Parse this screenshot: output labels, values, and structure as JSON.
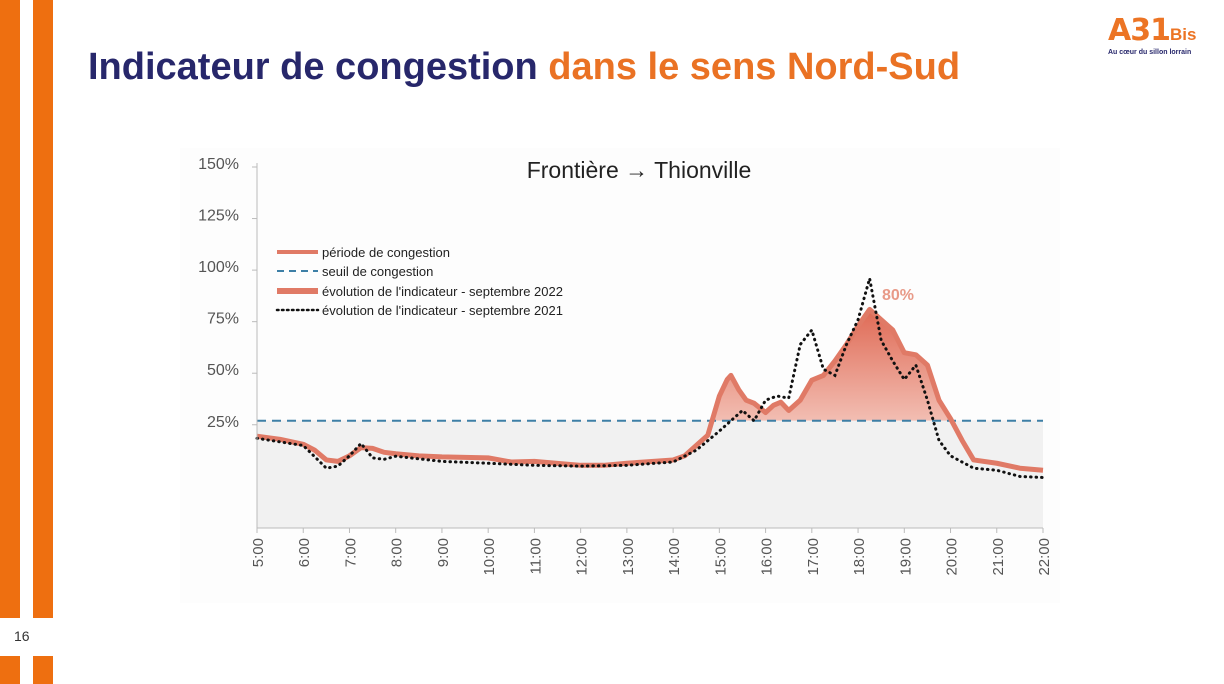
{
  "slide": {
    "title_part1": "Indicateur de congestion",
    "title_part2": "dans le sens Nord-Sud",
    "page_number": "16",
    "logo": {
      "main": "A31",
      "suffix": "Bis",
      "tagline": "Au cœur du sillon lorrain"
    },
    "colors": {
      "navy": "#27276b",
      "orange": "#ee6f10",
      "congestion": "#e07a66",
      "threshold": "#3d7fa6"
    }
  },
  "chart_data": {
    "type": "area",
    "title": "Frontière → Thionville",
    "xlabel": "",
    "ylabel": "",
    "x_ticks": [
      "5:00",
      "6:00",
      "7:00",
      "8:00",
      "9:00",
      "10:00",
      "11:00",
      "12:00",
      "13:00",
      "14:00",
      "15:00",
      "16:00",
      "17:00",
      "18:00",
      "19:00",
      "20:00",
      "21:00",
      "22:00"
    ],
    "y_ticks": [
      "25%",
      "50%",
      "75%",
      "100%",
      "125%",
      "150%"
    ],
    "y_tick_values": [
      25,
      50,
      75,
      100,
      125,
      150
    ],
    "xlim": [
      5,
      22
    ],
    "ylim": [
      -27,
      150
    ],
    "threshold": 25,
    "legend_placement": "top-left",
    "legend": [
      "période de congestion",
      "seuil de congestion",
      "évolution de l'indicateur - septembre 2022",
      "évolution de l'indicateur - septembre 2021"
    ],
    "annotation": "80%",
    "series": [
      {
        "name": "évolution de l'indicateur - septembre 2022",
        "x": [
          5,
          5.5,
          6,
          6.25,
          6.5,
          6.75,
          7,
          7.25,
          7.5,
          7.75,
          8,
          8.5,
          9,
          10,
          10.5,
          11,
          12,
          12.5,
          13,
          14,
          14.25,
          14.5,
          14.75,
          15,
          15.17,
          15.25,
          15.42,
          15.58,
          15.75,
          16,
          16.17,
          16.33,
          16.5,
          16.75,
          17,
          17.25,
          17.5,
          17.75,
          18,
          18.25,
          18.5,
          18.75,
          19,
          19.25,
          19.5,
          19.75,
          20,
          20.25,
          20.5,
          21,
          21.5,
          22
        ],
        "y": [
          17.5,
          16,
          13.6,
          10.7,
          6,
          5.3,
          8,
          12,
          11.6,
          9.7,
          9,
          8,
          7.5,
          7,
          5,
          5.3,
          3.4,
          3.4,
          4.4,
          6,
          8,
          13,
          18,
          37,
          45,
          47,
          40,
          35,
          33.5,
          29,
          32.5,
          34,
          30,
          35,
          44.7,
          47,
          54,
          62,
          71,
          79,
          74,
          69,
          58,
          57,
          52,
          35,
          26,
          15.5,
          6,
          4.4,
          2,
          1
        ]
      },
      {
        "name": "évolution de l'indicateur - septembre 2021",
        "x": [
          5,
          6,
          6.5,
          6.75,
          7,
          7.25,
          7.5,
          7.75,
          8,
          9,
          10,
          11,
          12,
          13,
          14,
          14.5,
          15,
          15.5,
          15.75,
          16,
          16.25,
          16.5,
          16.75,
          17,
          17.25,
          17.5,
          17.75,
          18,
          18.25,
          18.5,
          18.75,
          19,
          19.25,
          19.5,
          19.75,
          20,
          20.5,
          21,
          21.5,
          22
        ],
        "y": [
          16.5,
          13,
          2,
          3,
          8,
          14,
          7,
          6.3,
          7.8,
          5.3,
          4.4,
          3.4,
          3,
          3.4,
          5,
          10.7,
          20,
          30,
          25,
          35,
          37,
          36,
          62,
          69,
          50,
          47,
          62,
          74,
          94,
          64,
          54,
          45,
          52,
          35,
          15.5,
          8,
          2,
          1,
          -2,
          -2.5
        ]
      }
    ]
  }
}
